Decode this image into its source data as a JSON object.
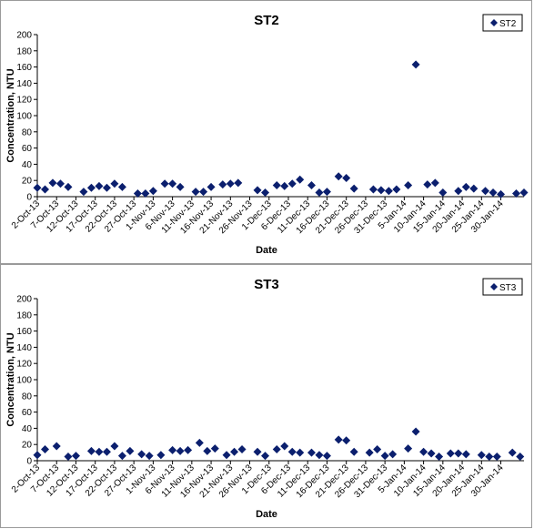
{
  "chart_data": [
    {
      "type": "scatter",
      "title": "ST2",
      "xlabel": "Date",
      "ylabel": "Concentration, NTU",
      "ylim": [
        0,
        200
      ],
      "yticks": [
        0,
        20,
        40,
        60,
        80,
        100,
        120,
        140,
        160,
        180,
        200
      ],
      "grid": false,
      "legend": "top-right",
      "marker": "diamond",
      "color": "#0b1f6e",
      "x_tick_labels": [
        "2-Oct-13",
        "7-Oct-13",
        "12-Oct-13",
        "17-Oct-13",
        "22-Oct-13",
        "27-Oct-13",
        "1-Nov-13",
        "6-Nov-13",
        "11-Nov-13",
        "16-Nov-13",
        "21-Nov-13",
        "26-Nov-13",
        "1-Dec-13",
        "6-Dec-13",
        "11-Dec-13",
        "16-Dec-13",
        "21-Dec-13",
        "26-Dec-13",
        "31-Dec-13",
        "5-Jan-14",
        "10-Jan-14",
        "15-Jan-14",
        "20-Jan-14",
        "25-Jan-14",
        "30-Jan-14"
      ],
      "series": [
        {
          "name": "ST2",
          "points": [
            [
              "2-Oct-13",
              11
            ],
            [
              "4-Oct-13",
              9
            ],
            [
              "6-Oct-13",
              17
            ],
            [
              "8-Oct-13",
              16
            ],
            [
              "10-Oct-13",
              12
            ],
            [
              "14-Oct-13",
              6
            ],
            [
              "16-Oct-13",
              11
            ],
            [
              "18-Oct-13",
              13
            ],
            [
              "20-Oct-13",
              11
            ],
            [
              "22-Oct-13",
              16
            ],
            [
              "24-Oct-13",
              12
            ],
            [
              "28-Oct-13",
              4
            ],
            [
              "30-Oct-13",
              4
            ],
            [
              "1-Nov-13",
              7
            ],
            [
              "4-Nov-13",
              16
            ],
            [
              "6-Nov-13",
              16
            ],
            [
              "8-Nov-13",
              12
            ],
            [
              "12-Nov-13",
              6
            ],
            [
              "14-Nov-13",
              6
            ],
            [
              "16-Nov-13",
              12
            ],
            [
              "19-Nov-13",
              15
            ],
            [
              "21-Nov-13",
              16
            ],
            [
              "23-Nov-13",
              17
            ],
            [
              "28-Nov-13",
              8
            ],
            [
              "30-Nov-13",
              5
            ],
            [
              "3-Dec-13",
              14
            ],
            [
              "5-Dec-13",
              13
            ],
            [
              "7-Dec-13",
              16
            ],
            [
              "9-Dec-13",
              21
            ],
            [
              "12-Dec-13",
              14
            ],
            [
              "14-Dec-13",
              5
            ],
            [
              "16-Dec-13",
              6
            ],
            [
              "19-Dec-13",
              25
            ],
            [
              "21-Dec-13",
              23
            ],
            [
              "23-Dec-13",
              10
            ],
            [
              "28-Dec-13",
              9
            ],
            [
              "30-Dec-13",
              8
            ],
            [
              "1-Jan-14",
              7
            ],
            [
              "3-Jan-14",
              9
            ],
            [
              "6-Jan-14",
              14
            ],
            [
              "8-Jan-14",
              163
            ],
            [
              "11-Jan-14",
              15
            ],
            [
              "13-Jan-14",
              17
            ],
            [
              "15-Jan-14",
              5
            ],
            [
              "19-Jan-14",
              7
            ],
            [
              "21-Jan-14",
              12
            ],
            [
              "23-Jan-14",
              10
            ],
            [
              "26-Jan-14",
              7
            ],
            [
              "28-Jan-14",
              5
            ],
            [
              "30-Jan-14",
              3
            ],
            [
              "3-Feb-14",
              4
            ],
            [
              "5-Feb-14",
              5
            ]
          ]
        }
      ]
    },
    {
      "type": "scatter",
      "title": "ST3",
      "xlabel": "Date",
      "ylabel": "Concentration, NTU",
      "ylim": [
        0,
        200
      ],
      "yticks": [
        0,
        20,
        40,
        60,
        80,
        100,
        120,
        140,
        160,
        180,
        200
      ],
      "grid": false,
      "legend": "top-right",
      "marker": "diamond",
      "color": "#0b1f6e",
      "x_tick_labels": [
        "2-Oct-13",
        "7-Oct-13",
        "12-Oct-13",
        "17-Oct-13",
        "22-Oct-13",
        "27-Oct-13",
        "1-Nov-13",
        "6-Nov-13",
        "11-Nov-13",
        "16-Nov-13",
        "21-Nov-13",
        "26-Nov-13",
        "1-Dec-13",
        "6-Dec-13",
        "11-Dec-13",
        "16-Dec-13",
        "21-Dec-13",
        "26-Dec-13",
        "31-Dec-13",
        "5-Jan-14",
        "10-Jan-14",
        "15-Jan-14",
        "20-Jan-14",
        "25-Jan-14",
        "30-Jan-14"
      ],
      "series": [
        {
          "name": "ST3",
          "points": [
            [
              "2-Oct-13",
              7
            ],
            [
              "4-Oct-13",
              14
            ],
            [
              "7-Oct-13",
              18
            ],
            [
              "10-Oct-13",
              5
            ],
            [
              "12-Oct-13",
              6
            ],
            [
              "16-Oct-13",
              12
            ],
            [
              "18-Oct-13",
              11
            ],
            [
              "20-Oct-13",
              11
            ],
            [
              "22-Oct-13",
              18
            ],
            [
              "24-Oct-13",
              6
            ],
            [
              "26-Oct-13",
              12
            ],
            [
              "29-Oct-13",
              8
            ],
            [
              "31-Oct-13",
              6
            ],
            [
              "3-Nov-13",
              7
            ],
            [
              "6-Nov-13",
              13
            ],
            [
              "8-Nov-13",
              12
            ],
            [
              "10-Nov-13",
              13
            ],
            [
              "13-Nov-13",
              22
            ],
            [
              "15-Nov-13",
              12
            ],
            [
              "17-Nov-13",
              15
            ],
            [
              "20-Nov-13",
              7
            ],
            [
              "22-Nov-13",
              11
            ],
            [
              "24-Nov-13",
              14
            ],
            [
              "28-Nov-13",
              11
            ],
            [
              "30-Nov-13",
              6
            ],
            [
              "3-Dec-13",
              14
            ],
            [
              "5-Dec-13",
              18
            ],
            [
              "7-Dec-13",
              11
            ],
            [
              "9-Dec-13",
              10
            ],
            [
              "12-Dec-13",
              10
            ],
            [
              "14-Dec-13",
              7
            ],
            [
              "16-Dec-13",
              6
            ],
            [
              "19-Dec-13",
              26
            ],
            [
              "21-Dec-13",
              25
            ],
            [
              "23-Dec-13",
              11
            ],
            [
              "27-Dec-13",
              10
            ],
            [
              "29-Dec-13",
              14
            ],
            [
              "31-Dec-13",
              6
            ],
            [
              "2-Jan-14",
              8
            ],
            [
              "6-Jan-14",
              15
            ],
            [
              "8-Jan-14",
              36
            ],
            [
              "10-Jan-14",
              11
            ],
            [
              "12-Jan-14",
              9
            ],
            [
              "14-Jan-14",
              5
            ],
            [
              "17-Jan-14",
              9
            ],
            [
              "19-Jan-14",
              9
            ],
            [
              "21-Jan-14",
              8
            ],
            [
              "25-Jan-14",
              7
            ],
            [
              "27-Jan-14",
              5
            ],
            [
              "29-Jan-14",
              5
            ],
            [
              "2-Feb-14",
              10
            ],
            [
              "4-Feb-14",
              5
            ]
          ]
        }
      ]
    }
  ]
}
